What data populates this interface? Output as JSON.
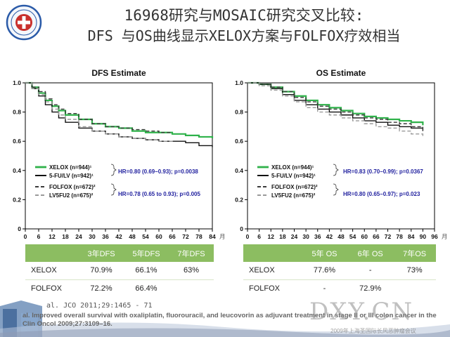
{
  "header": {
    "title_line1": "16968研究与MOSAIC研究交叉比较:",
    "title_line2": "DFS 与OS曲线显示XELOX方案与FOLFOX疗效相当"
  },
  "colors": {
    "green": "#2fb24a",
    "black": "#111111",
    "dark_gray": "#3a3a3a",
    "light_gray": "#9a9a9a",
    "table_header": "#8cbd61",
    "hr_label": "#1f1f9e"
  },
  "chart_data": [
    {
      "type": "line",
      "title": "DFS Estimate",
      "x_unit": "月",
      "xlim": [
        0,
        84
      ],
      "ylim": [
        0,
        1.0
      ],
      "x_ticks": [
        "0",
        "6",
        "12",
        "18",
        "24",
        "30",
        "36",
        "42",
        "48",
        "54",
        "60",
        "66",
        "72",
        "78",
        "84"
      ],
      "y_ticks": [
        "0",
        "0.2",
        "0.4",
        "0.6",
        "0.8",
        "1.0"
      ],
      "series": [
        {
          "name": "XELOX (n=944)¹",
          "style": "green-solid",
          "points": [
            [
              0,
              1.0
            ],
            [
              3,
              0.97
            ],
            [
              6,
              0.93
            ],
            [
              9,
              0.88
            ],
            [
              12,
              0.84
            ],
            [
              15,
              0.81
            ],
            [
              18,
              0.78
            ],
            [
              24,
              0.75
            ],
            [
              30,
              0.72
            ],
            [
              36,
              0.7
            ],
            [
              42,
              0.69
            ],
            [
              48,
              0.67
            ],
            [
              54,
              0.66
            ],
            [
              60,
              0.66
            ],
            [
              66,
              0.65
            ],
            [
              72,
              0.64
            ],
            [
              78,
              0.63
            ],
            [
              84,
              0.62
            ]
          ]
        },
        {
          "name": "5-FU/LV (n=942)¹",
          "style": "black-solid",
          "points": [
            [
              0,
              1.0
            ],
            [
              3,
              0.96
            ],
            [
              6,
              0.91
            ],
            [
              9,
              0.85
            ],
            [
              12,
              0.8
            ],
            [
              15,
              0.76
            ],
            [
              18,
              0.73
            ],
            [
              24,
              0.69
            ],
            [
              30,
              0.67
            ],
            [
              36,
              0.65
            ],
            [
              42,
              0.63
            ],
            [
              48,
              0.62
            ],
            [
              54,
              0.61
            ],
            [
              60,
              0.6
            ],
            [
              66,
              0.6
            ],
            [
              72,
              0.59
            ],
            [
              78,
              0.57
            ],
            [
              84,
              0.56
            ]
          ]
        },
        {
          "name": "FOLFOX (n=672)²",
          "style": "darkgray-dashed",
          "points": [
            [
              0,
              1.0
            ],
            [
              3,
              0.97
            ],
            [
              6,
              0.94
            ],
            [
              9,
              0.89
            ],
            [
              12,
              0.85
            ],
            [
              15,
              0.82
            ],
            [
              18,
              0.79
            ],
            [
              24,
              0.75
            ],
            [
              30,
              0.72
            ],
            [
              36,
              0.7
            ],
            [
              42,
              0.69
            ],
            [
              48,
              0.68
            ],
            [
              54,
              0.67
            ],
            [
              60,
              0.66
            ],
            [
              66,
              0.66
            ]
          ]
        },
        {
          "name": "LV5FU2 (n=675)²",
          "style": "lightgray-dashed",
          "points": [
            [
              0,
              1.0
            ],
            [
              3,
              0.96
            ],
            [
              6,
              0.92
            ],
            [
              9,
              0.87
            ],
            [
              12,
              0.82
            ],
            [
              15,
              0.78
            ],
            [
              18,
              0.75
            ],
            [
              24,
              0.7
            ],
            [
              30,
              0.67
            ],
            [
              36,
              0.65
            ],
            [
              42,
              0.63
            ],
            [
              48,
              0.62
            ],
            [
              54,
              0.61
            ],
            [
              60,
              0.6
            ],
            [
              66,
              0.59
            ]
          ]
        }
      ],
      "annotations": [
        "HR=0.80 (0.69–0.93); p=0.0038",
        "HR=0.78 (0.65 to 0.93); p=0.005"
      ]
    },
    {
      "type": "line",
      "title": "OS Estimate",
      "x_unit": "月",
      "xlim": [
        0,
        96
      ],
      "ylim": [
        0,
        1.0
      ],
      "x_ticks": [
        "0",
        "6",
        "12",
        "18",
        "24",
        "30",
        "36",
        "42",
        "48",
        "54",
        "60",
        "66",
        "72",
        "78",
        "84",
        "90",
        "96"
      ],
      "y_ticks": [
        "0",
        "0.2",
        "0.4",
        "0.6",
        "0.8",
        "1.0"
      ],
      "series": [
        {
          "name": "XELOX (n=944)¹",
          "style": "green-solid",
          "points": [
            [
              0,
              1.0
            ],
            [
              6,
              0.99
            ],
            [
              12,
              0.97
            ],
            [
              18,
              0.94
            ],
            [
              24,
              0.91
            ],
            [
              30,
              0.88
            ],
            [
              36,
              0.85
            ],
            [
              42,
              0.83
            ],
            [
              48,
              0.81
            ],
            [
              54,
              0.79
            ],
            [
              60,
              0.77
            ],
            [
              66,
              0.76
            ],
            [
              72,
              0.75
            ],
            [
              78,
              0.74
            ],
            [
              84,
              0.73
            ],
            [
              90,
              0.71
            ]
          ]
        },
        {
          "name": "5-FU/LV (n=942)¹",
          "style": "black-solid",
          "points": [
            [
              0,
              1.0
            ],
            [
              6,
              0.99
            ],
            [
              12,
              0.96
            ],
            [
              18,
              0.92
            ],
            [
              24,
              0.88
            ],
            [
              30,
              0.85
            ],
            [
              36,
              0.82
            ],
            [
              42,
              0.8
            ],
            [
              48,
              0.78
            ],
            [
              54,
              0.76
            ],
            [
              60,
              0.74
            ],
            [
              66,
              0.73
            ],
            [
              72,
              0.71
            ],
            [
              78,
              0.7
            ],
            [
              84,
              0.69
            ],
            [
              90,
              0.67
            ]
          ]
        },
        {
          "name": "FOLFOX (n=672)²",
          "style": "darkgray-dashed",
          "points": [
            [
              0,
              1.0
            ],
            [
              6,
              0.99
            ],
            [
              12,
              0.97
            ],
            [
              18,
              0.94
            ],
            [
              24,
              0.9
            ],
            [
              30,
              0.87
            ],
            [
              36,
              0.84
            ],
            [
              42,
              0.82
            ],
            [
              48,
              0.8
            ],
            [
              54,
              0.78
            ],
            [
              60,
              0.76
            ],
            [
              66,
              0.75
            ],
            [
              72,
              0.73
            ],
            [
              78,
              0.72
            ],
            [
              84,
              0.7
            ],
            [
              90,
              0.67
            ]
          ]
        },
        {
          "name": "LV5FU2 (n=675)²",
          "style": "lightgray-dashed",
          "points": [
            [
              0,
              1.0
            ],
            [
              6,
              0.98
            ],
            [
              12,
              0.95
            ],
            [
              18,
              0.91
            ],
            [
              24,
              0.87
            ],
            [
              30,
              0.83
            ],
            [
              36,
              0.8
            ],
            [
              42,
              0.78
            ],
            [
              48,
              0.76
            ],
            [
              54,
              0.74
            ],
            [
              60,
              0.72
            ],
            [
              66,
              0.7
            ],
            [
              72,
              0.69
            ],
            [
              78,
              0.67
            ],
            [
              84,
              0.65
            ],
            [
              90,
              0.63
            ]
          ]
        }
      ],
      "annotations": [
        "HR=0.83 (0.70–0.99); p=0.0367",
        "HR=0.80 (0.65–0.97); p=0.023"
      ]
    }
  ],
  "dfs_table": {
    "headers": [
      "",
      "3年DFS",
      "5年DFS",
      "7年DFS"
    ],
    "rows": [
      {
        "label": "XELOX",
        "values": [
          "70.9%",
          "66.1%",
          "63%"
        ]
      },
      {
        "label": "FOLFOX",
        "values": [
          "72.2%",
          "66.4%",
          ""
        ]
      }
    ]
  },
  "os_table": {
    "headers": [
      "",
      "5年 OS",
      "6年 OS",
      "7年OS"
    ],
    "rows": [
      {
        "label": "XELOX",
        "values": [
          "77.6%",
          "-",
          "73%"
        ]
      },
      {
        "label": "FOLFOX",
        "values": [
          "-",
          "72.9%",
          ""
        ]
      }
    ]
  },
  "footer": {
    "ref1": "al. JCO 2011;29:1465 - 71",
    "ref2": "al. Improved overall survival with oxaliplatin, fluorouracil, and leucovorin as adjuvant treatment in stage II or III colon cancer in the",
    "ref3": "Clin Oncol 2009;27:3109–16.",
    "watermark": "DXY.CN",
    "watermark_sub": "2009年上海圣国际长风恶肿瘤会议"
  }
}
